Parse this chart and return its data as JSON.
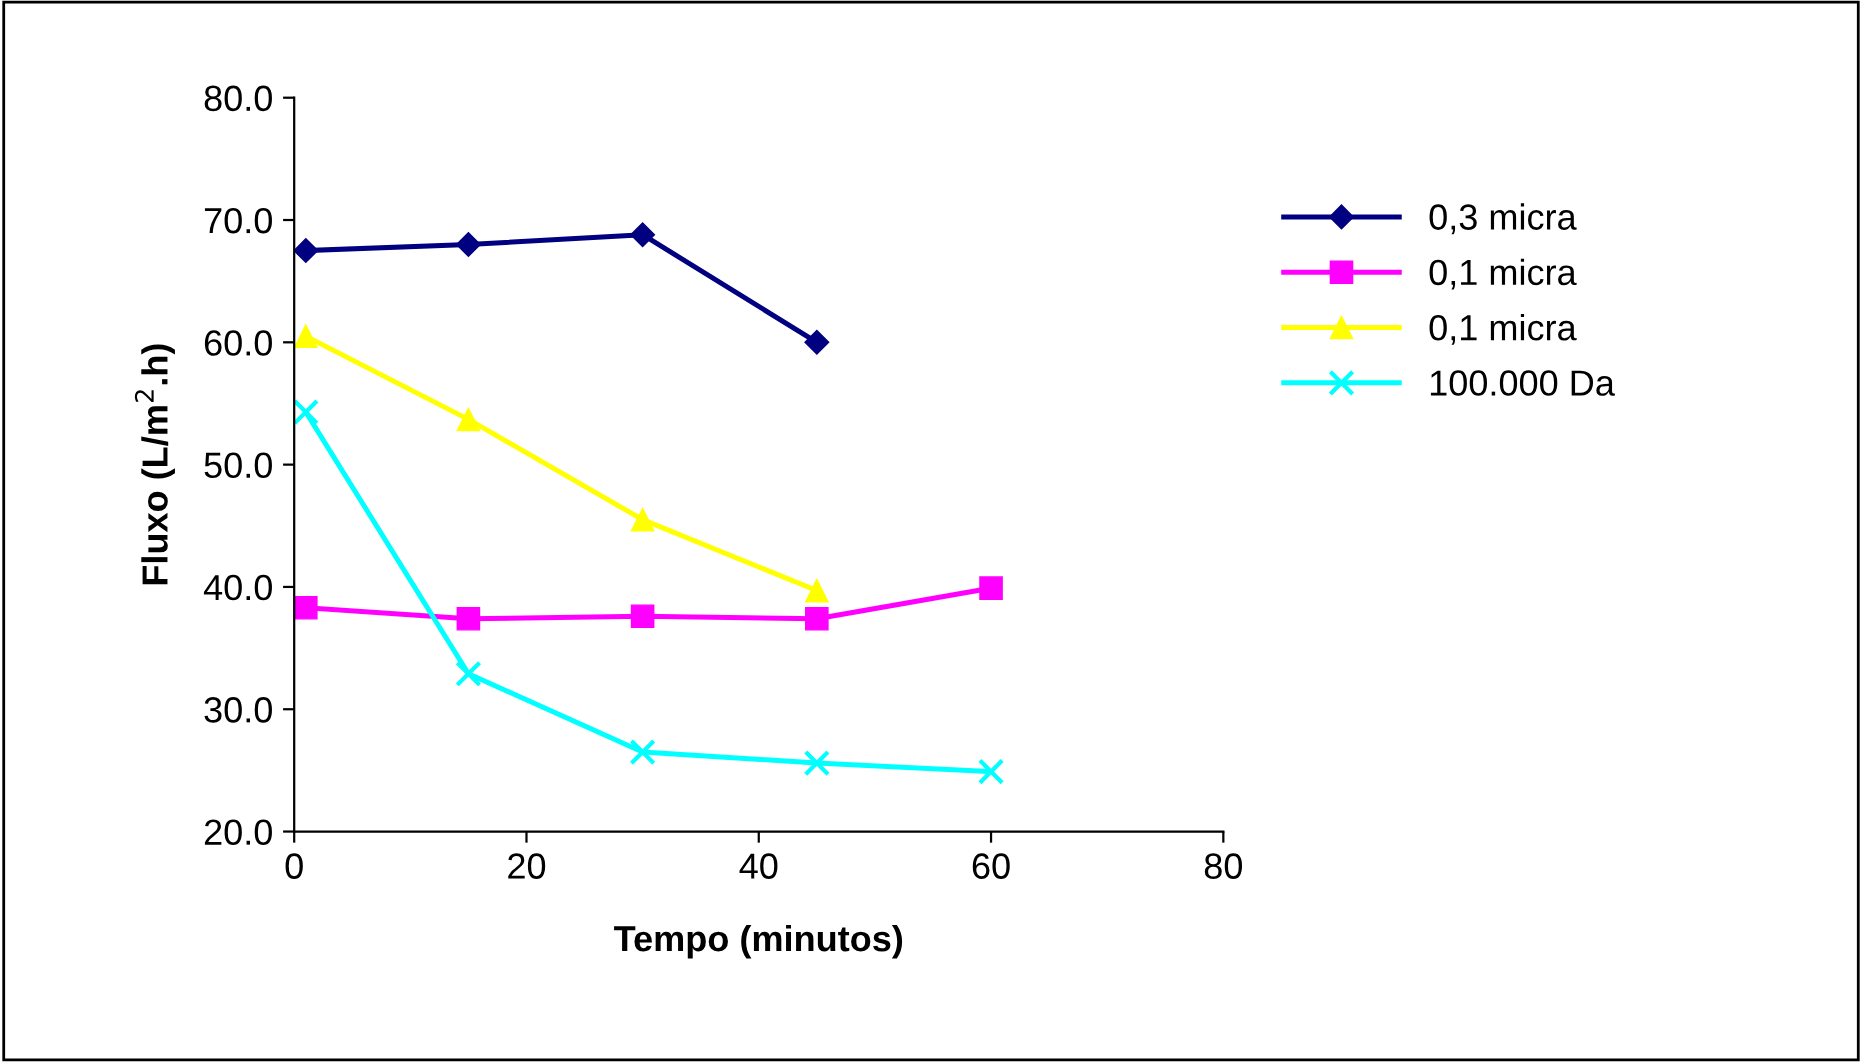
{
  "chart_data": {
    "type": "line",
    "xlabel": "Tempo (minutos)",
    "ylabel": "Fluxo (L/m$^{2}$.h)",
    "xlim": [
      0,
      80
    ],
    "xticks": [
      0,
      20,
      40,
      60,
      80
    ],
    "ylim": [
      20,
      80
    ],
    "yticks": [
      {
        "value": 20,
        "label": "20.0"
      },
      {
        "value": 30,
        "label": "30.0"
      },
      {
        "value": 40,
        "label": "40.0"
      },
      {
        "value": 50,
        "label": "50.0"
      },
      {
        "value": 60,
        "label": "60.0"
      },
      {
        "value": 70,
        "label": "70.0"
      },
      {
        "value": 80,
        "label": "80.0"
      }
    ],
    "grid": false,
    "legend": "right",
    "series": [
      {
        "name": "0,3 micra",
        "color": "#000080",
        "marker": "diamond",
        "x": [
          1,
          15,
          30,
          45
        ],
        "values": [
          67.5,
          68,
          68.8,
          60
        ]
      },
      {
        "name": "0,1 micra",
        "color": "#ff00ff",
        "marker": "square",
        "x": [
          1,
          15,
          30,
          45,
          60
        ],
        "values": [
          38.3,
          37.4,
          37.6,
          37.4,
          39.9
        ]
      },
      {
        "name": "0,1 micra",
        "color": "#ffff00",
        "marker": "triangle",
        "x": [
          1,
          15,
          30,
          45
        ],
        "values": [
          60.5,
          53.7,
          45.5,
          39.7
        ]
      },
      {
        "name": "100.000 Da",
        "color": "#00ffff",
        "marker": "cross",
        "x": [
          1,
          15,
          30,
          45,
          60
        ],
        "values": [
          54.3,
          32.9,
          26.5,
          25.6,
          24.9
        ]
      }
    ]
  }
}
